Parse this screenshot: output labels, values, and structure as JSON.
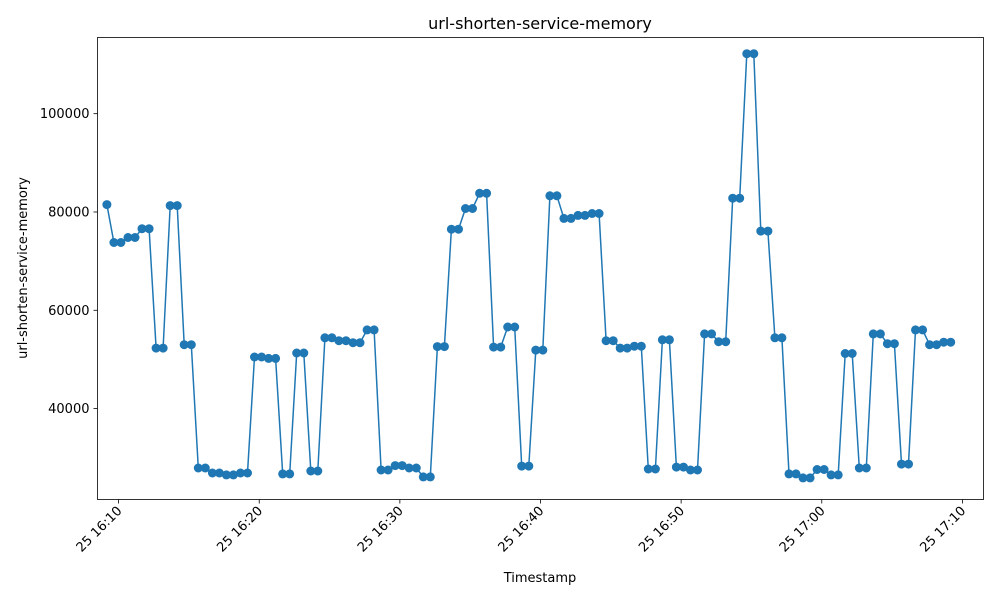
{
  "chart_data": {
    "type": "line",
    "title": "url-shorten-service-memory",
    "xlabel": "Timestamp",
    "ylabel": "url-shorten-service-memory",
    "x_tick_labels": [
      "25 16:10",
      "25 16:20",
      "25 16:30",
      "25 16:40",
      "25 16:50",
      "25 17:00",
      "25 17:10"
    ],
    "y_tick_labels": [
      "40000",
      "60000",
      "80000",
      "100000"
    ],
    "y_ticks": [
      40000,
      60000,
      80000,
      100000
    ],
    "xlim": [
      "16:08:30",
      "17:11:30"
    ],
    "ylim": [
      21500,
      115500
    ],
    "grid": false,
    "marker": "circle",
    "color": "#1f77b4",
    "series": [
      {
        "x": [
          "16:09:10",
          "16:09:40",
          "16:10:10",
          "16:10:40",
          "16:11:10",
          "16:11:40",
          "16:12:10",
          "16:12:40",
          "16:13:10",
          "16:13:40",
          "16:14:10",
          "16:14:40",
          "16:15:10",
          "16:15:40",
          "16:16:10",
          "16:16:40",
          "16:17:10",
          "16:17:40",
          "16:18:10",
          "16:18:40",
          "16:19:10",
          "16:19:40",
          "16:20:10",
          "16:20:40",
          "16:21:10",
          "16:21:40",
          "16:22:10",
          "16:22:40",
          "16:23:10",
          "16:23:40",
          "16:24:10",
          "16:24:40",
          "16:25:10",
          "16:25:40",
          "16:26:10",
          "16:26:40",
          "16:27:10",
          "16:27:40",
          "16:28:10",
          "16:28:40",
          "16:29:10",
          "16:29:40",
          "16:30:10",
          "16:30:40",
          "16:31:10",
          "16:31:40",
          "16:32:10",
          "16:32:40",
          "16:33:10",
          "16:33:40",
          "16:34:10",
          "16:34:40",
          "16:35:10",
          "16:35:40",
          "16:36:10",
          "16:36:40",
          "16:37:10",
          "16:37:40",
          "16:38:10",
          "16:38:40",
          "16:39:10",
          "16:39:40",
          "16:40:10",
          "16:40:40",
          "16:41:10",
          "16:41:40",
          "16:42:10",
          "16:42:40",
          "16:43:10",
          "16:43:40",
          "16:44:10",
          "16:44:40",
          "16:45:10",
          "16:45:40",
          "16:46:10",
          "16:46:40",
          "16:47:10",
          "16:47:40",
          "16:48:10",
          "16:48:40",
          "16:49:10",
          "16:49:40",
          "16:50:10",
          "16:50:40",
          "16:51:10",
          "16:51:40",
          "16:52:10",
          "16:52:40",
          "16:53:10",
          "16:53:40",
          "16:54:10",
          "16:54:40",
          "16:55:10",
          "16:55:40",
          "16:56:10",
          "16:56:40",
          "16:57:10",
          "16:57:40",
          "16:58:10",
          "16:58:40",
          "16:59:10",
          "16:59:40",
          "17:00:10",
          "17:00:40",
          "17:01:10",
          "17:01:40",
          "17:02:10",
          "17:02:40",
          "17:03:10",
          "17:03:40",
          "17:04:10",
          "17:04:40",
          "17:05:10",
          "17:05:40",
          "17:06:10",
          "17:06:40",
          "17:07:10",
          "17:07:40",
          "17:08:10",
          "17:08:40",
          "17:09:10"
        ],
        "y": [
          81500,
          73800,
          73800,
          74800,
          74800,
          76600,
          76600,
          52300,
          52300,
          81300,
          81300,
          53000,
          53000,
          27900,
          27900,
          26900,
          26900,
          26500,
          26500,
          26900,
          26900,
          50500,
          50500,
          50200,
          50200,
          26700,
          26700,
          51300,
          51300,
          27300,
          27300,
          54400,
          54400,
          53800,
          53800,
          53400,
          53400,
          56000,
          56000,
          27500,
          27500,
          28400,
          28400,
          27900,
          27900,
          26100,
          26100,
          52600,
          52600,
          76500,
          76500,
          80700,
          80700,
          83800,
          83800,
          52500,
          52500,
          56600,
          56600,
          28300,
          28300,
          51900,
          51900,
          83300,
          83300,
          78700,
          78700,
          79300,
          79300,
          79700,
          79700,
          53800,
          53800,
          52300,
          52300,
          52700,
          52700,
          27700,
          27700,
          54000,
          54000,
          28100,
          28100,
          27500,
          27500,
          55200,
          55200,
          53600,
          53600,
          82800,
          82800,
          112200,
          112200,
          76100,
          76100,
          54400,
          54400,
          26700,
          26700,
          25900,
          25900,
          27600,
          27600,
          26500,
          26500,
          51200,
          51200,
          27900,
          27900,
          55200,
          55200,
          53200,
          53200,
          28700,
          28700,
          56000,
          56000,
          53000,
          53000,
          53500,
          53500
        ]
      }
    ]
  }
}
